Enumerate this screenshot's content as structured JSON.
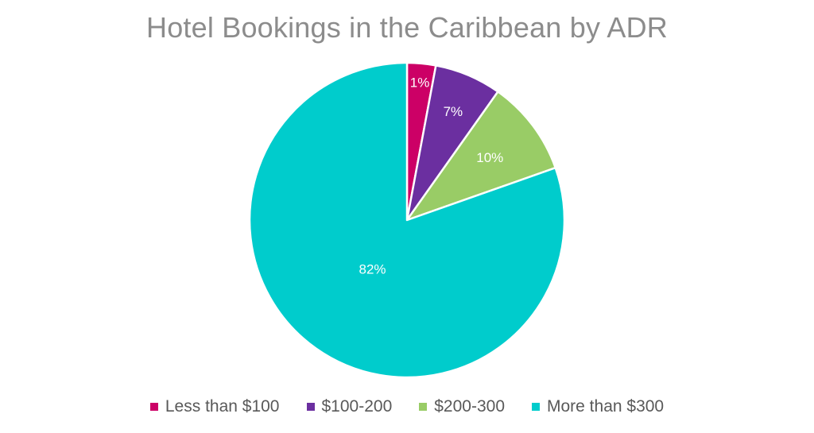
{
  "chart_data": {
    "type": "pie",
    "title": "Hotel Bookings in the Caribbean by ADR",
    "legend_position": "bottom",
    "series": [
      {
        "name": "Less than $100",
        "value": 1,
        "label": "1%",
        "color": "#cc0066"
      },
      {
        "name": "$100-200",
        "value": 7,
        "label": "7%",
        "color": "#6b2fa0"
      },
      {
        "name": "$200-300",
        "value": 10,
        "label": "10%",
        "color": "#99cc66"
      },
      {
        "name": "More than $300",
        "value": 82,
        "label": "82%",
        "color": "#00cccc"
      }
    ]
  }
}
